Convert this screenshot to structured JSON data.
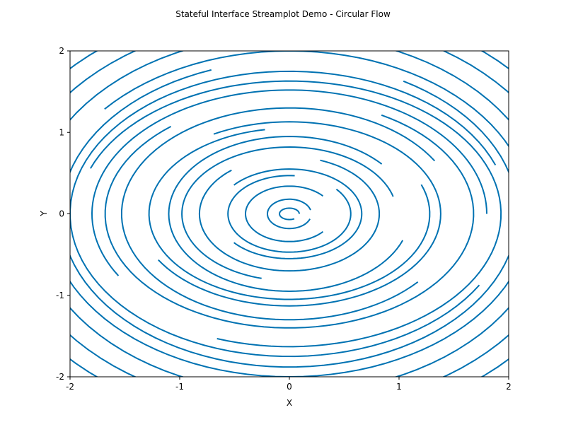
{
  "chart_data": {
    "type": "streamplot",
    "title": "Stateful Interface Streamplot Demo - Circular Flow",
    "xlabel": "X",
    "ylabel": "Y",
    "xlim": [
      -2,
      2
    ],
    "ylim": [
      -2,
      2
    ],
    "xticks": [
      -2,
      -1,
      0,
      1,
      2
    ],
    "yticks": [
      -2,
      -1,
      0,
      1,
      2
    ],
    "xtick_labels": [
      "-2",
      "-1",
      "0",
      "1",
      "2"
    ],
    "ytick_labels": [
      "-2",
      "-1",
      "0",
      "1",
      "2"
    ],
    "grid": false,
    "field": "circular flow: u = -y, v = x",
    "line_color": "#0072b2",
    "streamlines": [
      {
        "center": [
          0,
          0
        ],
        "rx": 0.09,
        "ry": 0.07,
        "from": 0,
        "to": 300
      },
      {
        "center": [
          0,
          0
        ],
        "rx": 0.2,
        "ry": 0.18,
        "from": 15,
        "to": 340
      },
      {
        "center": [
          0,
          0
        ],
        "rx": 0.4,
        "ry": 0.34,
        "from": 40,
        "to": 320
      },
      {
        "center": [
          0,
          0
        ],
        "rx": 0.56,
        "ry": 0.47,
        "from": 85,
        "to": 400
      },
      {
        "center": [
          0,
          0
        ],
        "rx": 0.66,
        "ry": 0.55,
        "from": 220,
        "to": 500
      },
      {
        "center": [
          0,
          0
        ],
        "rx": 0.82,
        "ry": 0.7,
        "from": 130,
        "to": 430
      },
      {
        "center": [
          0,
          0
        ],
        "rx": 0.98,
        "ry": 0.82,
        "from": 15,
        "to": 255
      },
      {
        "center": [
          0,
          0
        ],
        "rx": 1.1,
        "ry": 0.95,
        "from": 40,
        "to": 340
      },
      {
        "center": [
          0,
          0
        ],
        "rx": 1.28,
        "ry": 1.05,
        "from": 100,
        "to": 380
      },
      {
        "center": [
          0,
          0
        ],
        "rx": 1.38,
        "ry": 1.13,
        "from": 210,
        "to": 480
      },
      {
        "center": [
          0,
          0
        ],
        "rx": 1.53,
        "ry": 1.3,
        "from": 30,
        "to": 320
      },
      {
        "center": [
          0,
          0
        ],
        "rx": 1.68,
        "ry": 1.4,
        "from": 130,
        "to": 420
      },
      {
        "center": [
          0,
          0
        ],
        "rx": 1.8,
        "ry": 1.52,
        "from": 0,
        "to": 210
      },
      {
        "center": [
          0,
          0
        ],
        "rx": 1.93,
        "ry": 1.63,
        "from": 250,
        "to": 520
      },
      {
        "center": [
          0,
          0
        ],
        "rx": 2.0,
        "ry": 1.75,
        "from": 20,
        "to": 330
      },
      {
        "center": [
          0,
          0
        ],
        "rx": 2.08,
        "ry": 1.88,
        "from": 110,
        "to": 420
      },
      {
        "center": [
          0,
          0
        ],
        "rx": 2.2,
        "ry": 2.0,
        "from": 200,
        "to": 500
      },
      {
        "center": [
          0,
          0
        ],
        "rx": 2.35,
        "ry": 2.2,
        "from": 10,
        "to": 340
      },
      {
        "center": [
          0,
          0
        ],
        "rx": 2.55,
        "ry": 2.4,
        "from": 105,
        "to": 420
      },
      {
        "center": [
          0,
          0
        ],
        "rx": 2.75,
        "ry": 2.6,
        "from": 200,
        "to": 520
      }
    ]
  }
}
